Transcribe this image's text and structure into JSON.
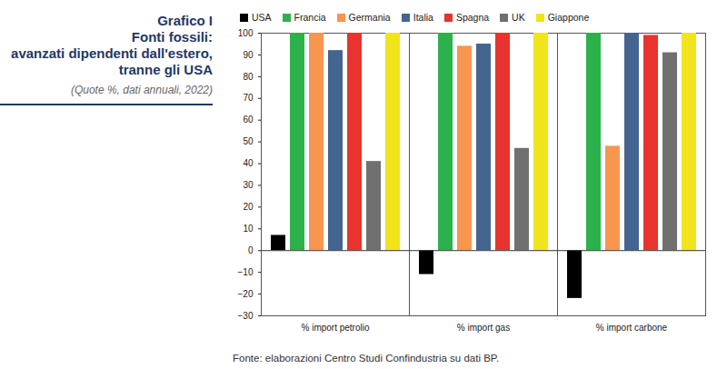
{
  "chart_data": {
    "type": "bar",
    "title": "Grafico I\nFonti fossili:\navanzati dipendenti dall'estero,\ntranne gli USA",
    "subtitle": "(Quote %, dati annuali, 2022)",
    "source": "Fonte: elaborazioni Centro Studi Confindustria su dati BP.",
    "categories": [
      "% import petrolio",
      "% import gas",
      "% import carbone"
    ],
    "series": [
      {
        "name": "USA",
        "color": "#000000",
        "values": [
          7,
          -11,
          -22
        ]
      },
      {
        "name": "Francia",
        "color": "#2db14c",
        "values": [
          100,
          100,
          100
        ]
      },
      {
        "name": "Germania",
        "color": "#f7964f",
        "values": [
          100,
          94,
          48
        ]
      },
      {
        "name": "Italia",
        "color": "#44658f",
        "values": [
          92,
          95,
          100
        ]
      },
      {
        "name": "Spagna",
        "color": "#e8332e",
        "values": [
          100,
          100,
          99
        ]
      },
      {
        "name": "UK",
        "color": "#707070",
        "values": [
          41,
          47,
          91
        ]
      },
      {
        "name": "Giappone",
        "color": "#f0e41c",
        "values": [
          100,
          100,
          100
        ]
      }
    ],
    "ylim": [
      -30,
      100
    ],
    "yticks": [
      -30,
      -20,
      -10,
      0,
      10,
      20,
      30,
      40,
      50,
      60,
      70,
      80,
      90,
      100
    ],
    "grid": false,
    "legend": "top"
  }
}
